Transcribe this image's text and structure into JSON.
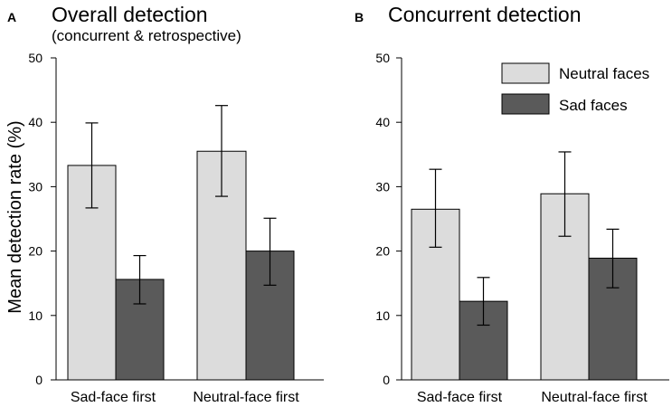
{
  "ylabel": "Mean detection rate  (%)",
  "legend": {
    "position": "top-right",
    "items": [
      {
        "label": "Neutral faces",
        "color": "#dcdcdc"
      },
      {
        "label": "Sad faces",
        "color": "#5a5a5a"
      }
    ]
  },
  "chart_data": [
    {
      "panel_letter": "A",
      "type": "bar",
      "title": "Overall detection",
      "subtitle": "(concurrent & retrospective)",
      "xlabel": "",
      "ylabel": "Mean detection rate  (%)",
      "ylim": [
        0,
        50
      ],
      "yticks": [
        0,
        10,
        20,
        30,
        40,
        50
      ],
      "grid": false,
      "categories": [
        "Sad-face first",
        "Neutral-face first"
      ],
      "series": [
        {
          "name": "Neutral faces",
          "color": "#dcdcdc",
          "values": [
            33.3,
            35.5
          ],
          "err_low": [
            26.7,
            28.5
          ],
          "err_high": [
            39.9,
            42.6
          ]
        },
        {
          "name": "Sad faces",
          "color": "#5a5a5a",
          "values": [
            15.6,
            20.0
          ],
          "err_low": [
            11.8,
            14.7
          ],
          "err_high": [
            19.3,
            25.1
          ]
        }
      ]
    },
    {
      "panel_letter": "B",
      "type": "bar",
      "title": "Concurrent detection",
      "subtitle": "",
      "xlabel": "",
      "ylabel": "",
      "ylim": [
        0,
        50
      ],
      "yticks": [
        0,
        10,
        20,
        30,
        40,
        50
      ],
      "grid": false,
      "categories": [
        "Sad-face first",
        "Neutral-face first"
      ],
      "series": [
        {
          "name": "Neutral faces",
          "color": "#dcdcdc",
          "values": [
            26.5,
            28.9
          ],
          "err_low": [
            20.6,
            22.3
          ],
          "err_high": [
            32.7,
            35.4
          ]
        },
        {
          "name": "Sad faces",
          "color": "#5a5a5a",
          "values": [
            12.2,
            18.9
          ],
          "err_low": [
            8.5,
            14.3
          ],
          "err_high": [
            15.9,
            23.4
          ]
        }
      ]
    }
  ]
}
